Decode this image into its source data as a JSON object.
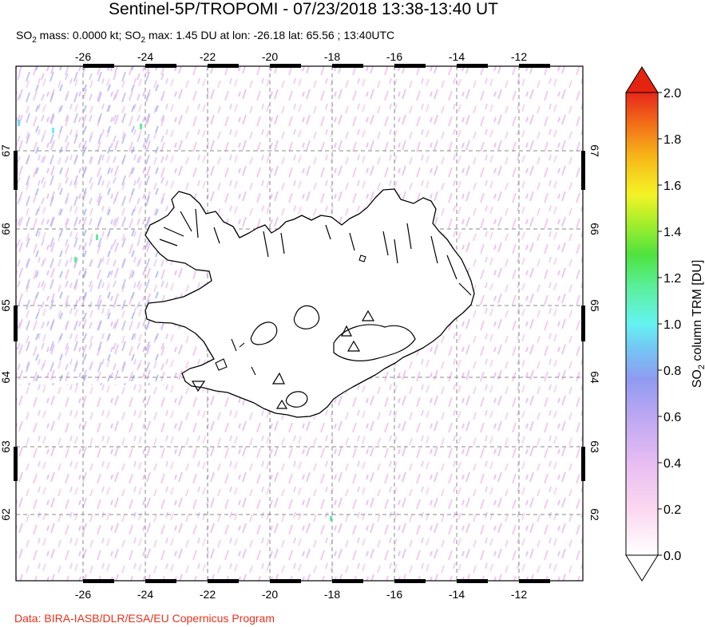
{
  "title": "Sentinel-5P/TROPOMI - 07/23/2018 13:38-13:40 UT",
  "subtitle": {
    "p1": "SO",
    "p1_sub": "2",
    "p2": " mass: 0.0000 kt; SO",
    "p2_sub": "2",
    "p3": " max: 1.45 DU at lon: -26.18 lat: 65.56 ; 13:40UTC"
  },
  "credit": "Data: BIRA-IASB/DLR/ESA/EU Copernicus Program",
  "map": {
    "lon_ticks": [
      "-26",
      "-24",
      "-22",
      "-20",
      "-18",
      "-16",
      "-14",
      "-12"
    ],
    "lat_ticks_left": [
      "67",
      "66",
      "65",
      "64",
      "63",
      "62"
    ],
    "lat_ticks_right": [
      "67",
      "66",
      "65",
      "64",
      "63",
      "62"
    ],
    "volcano_count": 6
  },
  "colorbar": {
    "title_p1": "SO",
    "title_sub": "2",
    "title_p2": " column TRM [DU]",
    "labels": [
      "2.0",
      "1.8",
      "1.6",
      "1.4",
      "1.2",
      "1.0",
      "0.8",
      "0.6",
      "0.4",
      "0.2",
      "0.0"
    ],
    "colors": [
      "#ffffff",
      "#fbd7f0",
      "#e4b9f1",
      "#b9a6f2",
      "#8e9af1",
      "#72d6f4",
      "#5ef7e3",
      "#58ef8c",
      "#6fe03a",
      "#c7f02b",
      "#f9ef26",
      "#f6b618",
      "#f4751a",
      "#ec2d17"
    ],
    "max_color": "#e4240f"
  }
}
